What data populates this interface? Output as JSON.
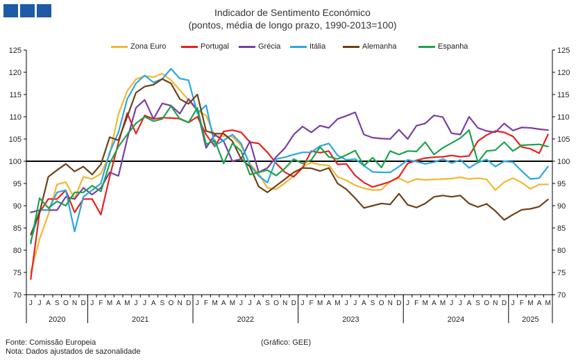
{
  "logo": {
    "colors": [
      "#1f5aa6",
      "#1f5aa6",
      "#1f5aa6"
    ],
    "icon": "gee-logo-icon"
  },
  "chart_data": {
    "type": "line",
    "title": "Indicador de Sentimento Económico",
    "subtitle": "(pontos, média de longo prazo, 1990-2013=100)",
    "ylim": [
      70,
      125
    ],
    "yticks": [
      70,
      75,
      80,
      85,
      90,
      95,
      100,
      105,
      110,
      115,
      120,
      125
    ],
    "reference_line": 100,
    "grid": false,
    "legend_position": "top",
    "month_labels": [
      "J",
      "J",
      "A",
      "S",
      "O",
      "N",
      "D",
      "J",
      "F",
      "M",
      "A",
      "M",
      "J",
      "J",
      "A",
      "S",
      "O",
      "N",
      "D",
      "J",
      "F",
      "M",
      "A",
      "M",
      "J",
      "J",
      "A",
      "S",
      "O",
      "N",
      "D",
      "J",
      "F",
      "M",
      "A",
      "M",
      "J",
      "J",
      "A",
      "S",
      "O",
      "N",
      "D",
      "J",
      "F",
      "M",
      "A",
      "M",
      "J",
      "J",
      "A",
      "S",
      "O",
      "N",
      "D",
      "J",
      "F",
      "M",
      "A",
      "M"
    ],
    "years": [
      {
        "label": "2020",
        "months": 7
      },
      {
        "label": "2021",
        "months": 12
      },
      {
        "label": "2022",
        "months": 12
      },
      {
        "label": "2023",
        "months": 12
      },
      {
        "label": "2024",
        "months": 12
      },
      {
        "label": "2025",
        "months": 5
      }
    ],
    "series": [
      {
        "name": "Zona Euro",
        "color": "#f2b630",
        "values": [
          75.0,
          82.5,
          88.0,
          94.8,
          95.3,
          91.6,
          96.5,
          96.0,
          97.2,
          101.5,
          110.6,
          115.8,
          118.4,
          119.2,
          118.9,
          119.7,
          118.2,
          116.0,
          113.8,
          111.3,
          110.3,
          105.6,
          105.7,
          105.5,
          103.5,
          99.4,
          97.2,
          94.0,
          93.7,
          95.1,
          96.7,
          98.7,
          99.7,
          99.2,
          99.1,
          96.5,
          95.7,
          94.6,
          93.9,
          93.5,
          93.6,
          95.5,
          96.2,
          95.2,
          96.0,
          95.8,
          95.9,
          96.0,
          96.1,
          96.4,
          96.0,
          96.2,
          95.9,
          93.5,
          95.3,
          96.2,
          95.2,
          93.8,
          94.8,
          94.8
        ]
      },
      {
        "name": "Portugal",
        "color": "#e8201f",
        "values": [
          73.5,
          88.5,
          91.5,
          91.5,
          93.5,
          88.5,
          91.5,
          91.5,
          88.0,
          96.5,
          104.2,
          110.8,
          106.2,
          110.3,
          109.5,
          109.8,
          109.7,
          109.6,
          108.7,
          110.0,
          106.0,
          103.3,
          106.7,
          107.0,
          106.5,
          104.3,
          104.0,
          102.0,
          99.5,
          97.5,
          96.5,
          98.5,
          102.3,
          101.9,
          102.3,
          99.3,
          99.4,
          96.8,
          95.2,
          94.2,
          94.8,
          95.4,
          96.5,
          99.5,
          100.2,
          100.7,
          100.9,
          101.0,
          101.3,
          101.0,
          101.2,
          104.5,
          105.9,
          106.8,
          106.5,
          105.6,
          103.2,
          102.8,
          101.8,
          106.0
        ]
      },
      {
        "name": "Grécia",
        "color": "#7a3da3",
        "values": [
          88.5,
          89.0,
          89.0,
          89.0,
          92.0,
          91.5,
          94.0,
          92.5,
          94.0,
          97.5,
          96.7,
          105.0,
          112.0,
          113.8,
          109.5,
          113.0,
          112.5,
          110.7,
          114.0,
          111.5,
          103.0,
          106.0,
          104.5,
          100.0,
          100.5,
          104.5,
          97.5,
          98.5,
          101.0,
          103.0,
          106.0,
          107.8,
          106.5,
          108.0,
          107.5,
          109.5,
          110.2,
          111.0,
          106.0,
          105.3,
          105.1,
          105.0,
          107.1,
          105.0,
          108.0,
          108.5,
          110.3,
          109.9,
          106.3,
          106.0,
          110.0,
          107.5,
          106.8,
          106.5,
          108.5,
          106.9,
          107.6,
          107.5,
          107.2,
          107.0
        ]
      },
      {
        "name": "Itália",
        "color": "#2aa7e0",
        "values": [
          82.0,
          89.0,
          89.0,
          93.0,
          93.5,
          84.2,
          92.0,
          93.5,
          95.0,
          102.0,
          106.5,
          114.0,
          117.5,
          119.3,
          117.7,
          118.5,
          120.8,
          118.6,
          118.2,
          110.8,
          112.6,
          103.5,
          104.7,
          106.0,
          104.0,
          99.1,
          96.7,
          95.2,
          100.5,
          100.9,
          101.5,
          102.0,
          102.0,
          103.4,
          104.0,
          101.3,
          100.3,
          100.5,
          99.0,
          97.6,
          97.5,
          97.5,
          98.8,
          100.3,
          99.9,
          99.4,
          99.8,
          100.5,
          99.6,
          100.3,
          98.5,
          99.7,
          100.4,
          98.8,
          100.0,
          99.8,
          97.8,
          96.0,
          96.2,
          98.8
        ]
      },
      {
        "name": "Alemanha",
        "color": "#6e4016",
        "values": [
          83.5,
          88.5,
          96.5,
          98.0,
          99.4,
          97.7,
          98.8,
          97.0,
          99.3,
          105.4,
          104.7,
          110.0,
          115.4,
          116.8,
          117.2,
          118.5,
          117.5,
          114.0,
          112.9,
          115.0,
          106.8,
          106.2,
          106.2,
          104.5,
          100.5,
          98.8,
          94.3,
          93.0,
          94.5,
          96.0,
          97.5,
          98.5,
          98.4,
          97.8,
          98.5,
          95.0,
          93.7,
          91.7,
          89.5,
          90.0,
          90.5,
          90.3,
          92.7,
          90.2,
          89.6,
          90.5,
          92.0,
          92.3,
          92.0,
          92.3,
          90.5,
          89.7,
          90.4,
          88.8,
          86.8,
          88.0,
          89.1,
          89.3,
          89.8,
          91.4
        ]
      },
      {
        "name": "Espanha",
        "color": "#1ba34a",
        "values": [
          81.5,
          91.7,
          89.5,
          91.0,
          90.0,
          93.0,
          93.0,
          94.5,
          93.2,
          99.5,
          103.3,
          106.0,
          108.5,
          110.0,
          109.0,
          109.5,
          112.4,
          109.5,
          108.7,
          112.0,
          103.8,
          104.7,
          99.5,
          104.0,
          102.3,
          97.0,
          97.5,
          98.0,
          96.8,
          98.4,
          100.5,
          99.5,
          100.3,
          103.2,
          101.0,
          100.5,
          101.4,
          102.4,
          99.0,
          100.8,
          98.6,
          102.3,
          101.5,
          102.3,
          102.2,
          104.3,
          101.5,
          103.0,
          104.1,
          105.2,
          107.0,
          99.8,
          102.3,
          102.5,
          104.3,
          102.3,
          103.6,
          103.7,
          103.8,
          103.3
        ]
      }
    ]
  },
  "footer": {
    "source": "Fonte: Comissão Europeia",
    "note": "Nota: Dados ajustados de sazonalidade",
    "credit": "(Gráfico: GEE)"
  }
}
